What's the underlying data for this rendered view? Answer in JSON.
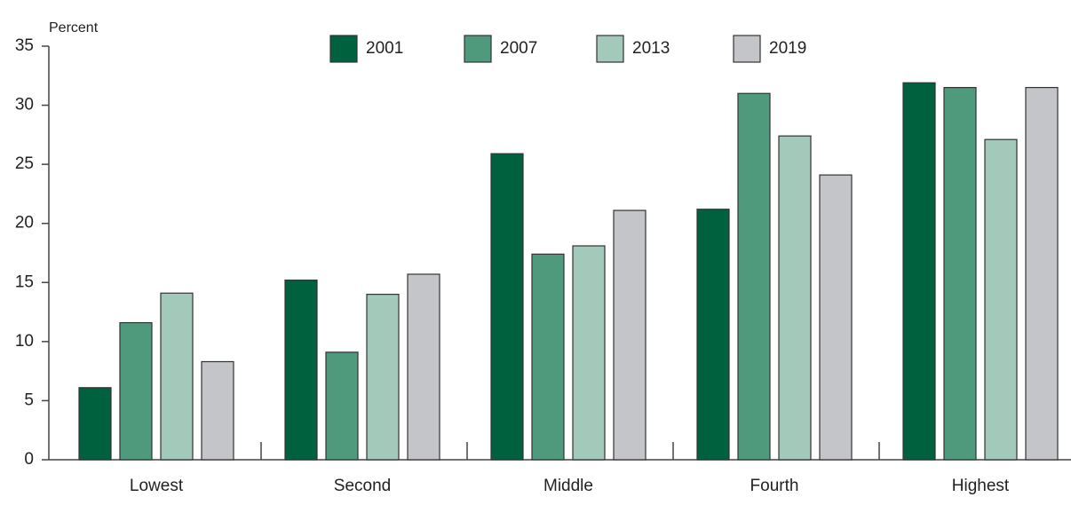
{
  "chart_data": {
    "type": "bar",
    "y_label": "Percent",
    "categories": [
      "Lowest",
      "Second",
      "Middle",
      "Fourth",
      "Highest"
    ],
    "series": [
      {
        "name": "2001",
        "color": "#00613f",
        "values": [
          6.1,
          15.2,
          25.9,
          21.2,
          31.9
        ]
      },
      {
        "name": "2007",
        "color": "#4f9a7c",
        "values": [
          11.6,
          9.1,
          17.4,
          31.0,
          31.5
        ]
      },
      {
        "name": "2013",
        "color": "#a3c9ba",
        "values": [
          14.1,
          14.0,
          18.1,
          27.4,
          27.1
        ]
      },
      {
        "name": "2019",
        "color": "#c4c5c8",
        "values": [
          8.3,
          15.7,
          21.1,
          24.1,
          31.5
        ]
      }
    ],
    "ylim": [
      0,
      35
    ],
    "yticks": [
      0,
      5,
      10,
      15,
      20,
      25,
      30,
      35
    ],
    "legend": "top"
  }
}
